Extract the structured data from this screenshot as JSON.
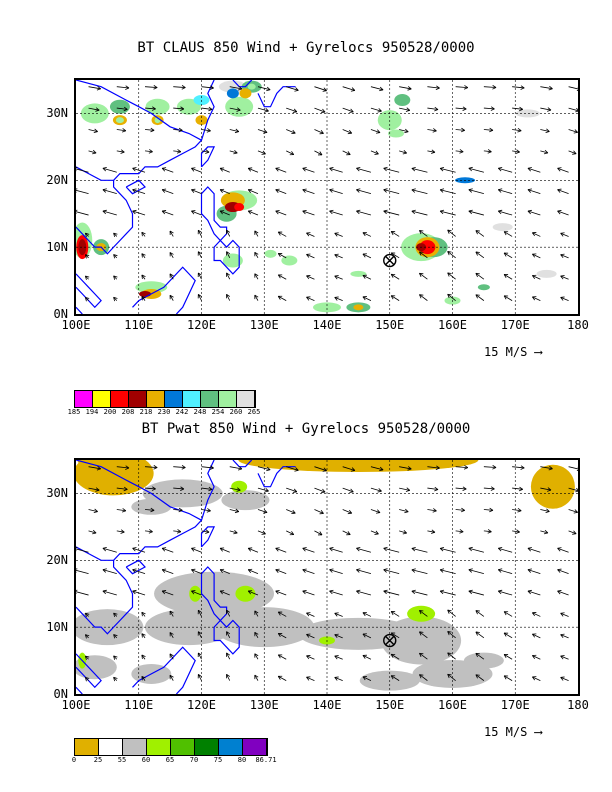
{
  "panels": [
    {
      "title": "BT CLAUS 850 Wind + Gyrelocs 950528/0000",
      "x_tick_labels": [
        "100E",
        "110E",
        "120E",
        "130E",
        "140E",
        "150E",
        "160E",
        "170E",
        "180"
      ],
      "y_tick_labels": [
        "0N",
        "10N",
        "20N",
        "30N"
      ],
      "vector_scale_label": "15 M/S",
      "colorbar": {
        "colors": [
          "#ff00ff",
          "#ffff00",
          "#ff0000",
          "#a00000",
          "#e8b000",
          "#0078d8",
          "#50f0ff",
          "#60c080",
          "#a0f0a0",
          "#e0e0e0"
        ],
        "labels": [
          "185",
          "194",
          "200",
          "208",
          "218",
          "230",
          "242",
          "248",
          "254",
          "260",
          "265"
        ]
      }
    },
    {
      "title": "BT Pwat 850 Wind + Gyrelocs 950528/0000",
      "x_tick_labels": [
        "100E",
        "110E",
        "120E",
        "130E",
        "140E",
        "150E",
        "160E",
        "170E",
        "180"
      ],
      "y_tick_labels": [
        "0N",
        "10N",
        "20N",
        "30N"
      ],
      "vector_scale_label": "15 M/S",
      "colorbar": {
        "colors": [
          "#e0b000",
          "#ffffff",
          "#c0c0c0",
          "#a0f000",
          "#50c000",
          "#008000",
          "#0080d0",
          "#8000c0"
        ],
        "labels": [
          "0",
          "25",
          "55",
          "60",
          "65",
          "70",
          "75",
          "80",
          "86.71"
        ]
      }
    }
  ],
  "gyre_symbol": "circled-x-icon",
  "gyre_location": {
    "lon": 150,
    "lat": 8
  },
  "coast_color": "#0000ff"
}
